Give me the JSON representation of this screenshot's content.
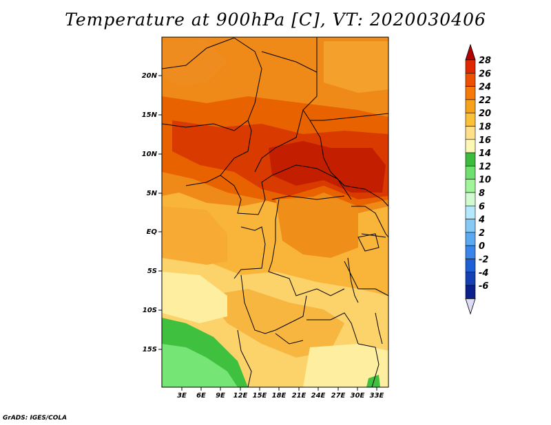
{
  "title": "Temperature at 900hPa [C], VT: 2020030406",
  "credit": "GrADS: IGES/COLA",
  "lat_labels": [
    "20N",
    "15N",
    "10N",
    "5N",
    "EQ",
    "5S",
    "10S",
    "15S"
  ],
  "lon_labels": [
    "3E",
    "6E",
    "9E",
    "12E",
    "15E",
    "18E",
    "21E",
    "24E",
    "27E",
    "30E",
    "33E"
  ],
  "colorbar": {
    "labels": [
      "28",
      "26",
      "24",
      "22",
      "20",
      "18",
      "16",
      "14",
      "12",
      "10",
      "8",
      "6",
      "4",
      "2",
      "0",
      "-2",
      "-4",
      "-6"
    ],
    "colors_top_to_bottom": [
      "#b40000",
      "#df2800",
      "#ed5000",
      "#f57a08",
      "#f8a21c",
      "#fbc138",
      "#fee08b",
      "#fef7b4",
      "#3cbb3c",
      "#6fe06f",
      "#a0f59a",
      "#d2fad0",
      "#b4e8ff",
      "#87c9f5",
      "#5ba9f0",
      "#3a86e8",
      "#1f5fd6",
      "#1440b4",
      "#0a208c",
      "#dcdcf5"
    ]
  },
  "regions": {
    "hot": "#c81e00",
    "warm": "#e85800",
    "mid": "#f29320",
    "mild": "#f8b53a",
    "cool": "#fbd36a",
    "pale": "#feeea0",
    "green": "#3fc03f",
    "lightgreen": "#75e675"
  }
}
